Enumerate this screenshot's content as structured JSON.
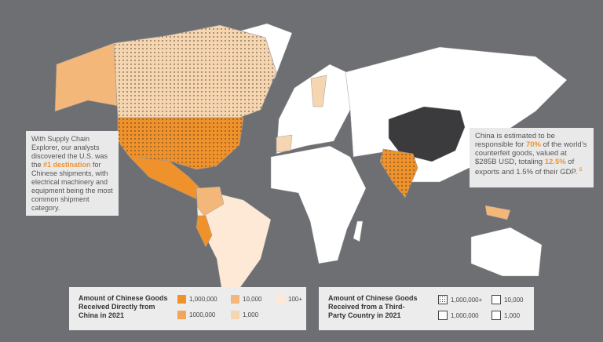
{
  "callout_left": {
    "parts": [
      "With Supply Chain Explorer, our analysts discovered the U.S. was the ",
      "#1 destination",
      " for Chinese shipments, with electrical machinery and equipment being the most common shipment category."
    ]
  },
  "callout_right": {
    "parts": [
      "China is estimated to be responsible for ",
      "70%",
      " of the world’s counterfeit goods, valued at  $285B USD, totaling ",
      "12.5%",
      " of exports and 1.5% of their GDP. "
    ],
    "footnote": "5"
  },
  "legend_direct": {
    "title": "Amount of Chinese Goods Received Directly from China in 2021",
    "items": [
      "1,000,000",
      "1000,000",
      "10,000",
      "1,000",
      "100+"
    ]
  },
  "legend_third_party": {
    "title": "Amount of Chinese Goods Received from a Third-Party Country in 2021",
    "items": [
      "1,000,000+",
      "1,000,000",
      "10,000",
      "1,000"
    ]
  }
}
